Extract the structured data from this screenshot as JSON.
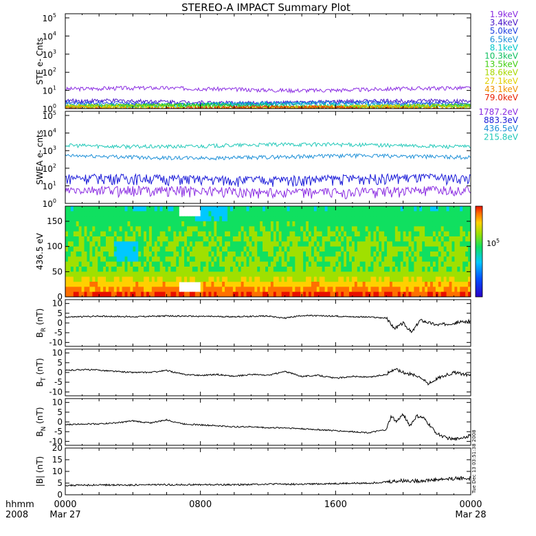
{
  "title": "STEREO-A IMPACT Summary Plot",
  "footer": {
    "corner_top": "hhmm",
    "corner_bottom": "2008",
    "ticks": [
      {
        "time": "0000",
        "date": "Mar 27"
      },
      {
        "time": "0800",
        "date": ""
      },
      {
        "time": "1600",
        "date": ""
      },
      {
        "time": "0000",
        "date": "Mar 28"
      }
    ]
  },
  "side_stamp": "Tue Dec 13 03:51:38 2008",
  "chart_data": [
    {
      "id": "ste",
      "type": "line",
      "ylabel": "STE e- Cnts",
      "yscale": "log",
      "ylim": [
        1,
        100000
      ],
      "ytick_base": "10",
      "ytick_exps": [
        "0",
        "1",
        "2",
        "3",
        "4",
        "5"
      ],
      "xlim_hours": [
        0,
        24
      ],
      "series": [
        {
          "name": "1.9keV",
          "color": "#8a2be2",
          "level": 12
        },
        {
          "name": "3.4keV",
          "color": "#4b17c8",
          "level": 2.4
        },
        {
          "name": "5.0keV",
          "color": "#1f3fe0",
          "level": 2.0
        },
        {
          "name": "6.5keV",
          "color": "#1e90d8",
          "level": 1.8
        },
        {
          "name": "8.1keV",
          "color": "#00c8c8",
          "level": 1.6
        },
        {
          "name": "10.3keV",
          "color": "#10c060",
          "level": 1.45
        },
        {
          "name": "13.5keV",
          "color": "#40d010",
          "level": 1.35
        },
        {
          "name": "18.6keV",
          "color": "#a8d800",
          "level": 1.25
        },
        {
          "name": "27.1keV",
          "color": "#e0d000",
          "level": 1.15
        },
        {
          "name": "43.1keV",
          "color": "#f09000",
          "level": 1.08
        },
        {
          "name": "79.0keV",
          "color": "#e82000",
          "level": 1.03
        }
      ]
    },
    {
      "id": "swea",
      "type": "line",
      "ylabel": "SWEA e- cnts",
      "yscale": "log",
      "ylim": [
        1,
        100000
      ],
      "ytick_base": "10",
      "ytick_exps": [
        "0",
        "1",
        "2",
        "3",
        "4",
        "5"
      ],
      "xlim_hours": [
        0,
        24
      ],
      "series": [
        {
          "name": "1787.2eV",
          "color": "#8a2be2",
          "level": 4
        },
        {
          "name": "883.3eV",
          "color": "#1a1ad8",
          "level": 20
        },
        {
          "name": "436.5eV",
          "color": "#1e90d8",
          "level": 450
        },
        {
          "name": "215.8eV",
          "color": "#20c8b8",
          "level": 2000
        }
      ]
    },
    {
      "id": "pad",
      "type": "heatmap",
      "ylabel": "436.5 eV",
      "ylim": [
        0,
        180
      ],
      "yticks": [
        "0",
        "50",
        "100",
        "150"
      ],
      "xlim_hours": [
        0,
        24
      ],
      "colorbar_label": "10",
      "colorbar_exp": "5"
    },
    {
      "id": "br",
      "type": "line",
      "ylabel": "B",
      "ylabel_sub": "R",
      "ylabel_unit": "(nT)",
      "ylim": [
        -12,
        12
      ],
      "yticks": [
        "10",
        "5",
        "0",
        "-5",
        "-10"
      ],
      "xlim_hours": [
        0,
        24
      ],
      "series": [
        {
          "color": "#000000",
          "x": [
            0,
            2,
            4,
            6,
            8,
            10,
            12,
            13,
            14,
            16,
            18,
            19,
            19.5,
            20,
            20.5,
            21,
            22,
            23,
            24
          ],
          "y": [
            3,
            3.5,
            3.2,
            3.6,
            3.4,
            3.2,
            3.6,
            2.5,
            3.8,
            3.5,
            3,
            2.5,
            -3,
            0,
            -5,
            1.5,
            -1,
            0,
            1
          ]
        }
      ]
    },
    {
      "id": "bt",
      "type": "line",
      "ylabel": "B",
      "ylabel_sub": "T",
      "ylabel_unit": "(nT)",
      "ylim": [
        -12,
        12
      ],
      "yticks": [
        "10",
        "5",
        "0",
        "-5",
        "-10"
      ],
      "xlim_hours": [
        0,
        24
      ],
      "series": [
        {
          "color": "#000000",
          "x": [
            0,
            1,
            2,
            3,
            4,
            5,
            6,
            7,
            8,
            9,
            10,
            11,
            12,
            13,
            14,
            15,
            16,
            17,
            18,
            19,
            19.5,
            20,
            20.5,
            21,
            21.5,
            22,
            23,
            24
          ],
          "y": [
            1,
            1.5,
            1.2,
            0.5,
            0,
            0,
            1,
            -1,
            -1.5,
            -1,
            -2,
            -1,
            -1.5,
            0.5,
            -2,
            -1.5,
            -3,
            -2,
            -2.5,
            -1,
            2,
            0,
            -1,
            -2,
            -6,
            -3,
            0,
            -1.5
          ]
        }
      ]
    },
    {
      "id": "bn",
      "type": "line",
      "ylabel": "B",
      "ylabel_sub": "N",
      "ylabel_unit": "(nT)",
      "ylim": [
        -12,
        12
      ],
      "yticks": [
        "10",
        "5",
        "0",
        "-5",
        "-10"
      ],
      "xlim_hours": [
        0,
        24
      ],
      "series": [
        {
          "color": "#000000",
          "x": [
            0,
            1,
            2,
            3,
            4,
            5,
            6,
            7,
            8,
            9,
            10,
            11,
            12,
            13,
            14,
            15,
            16,
            17,
            18,
            19,
            19.3,
            19.6,
            20,
            20.4,
            20.8,
            21.2,
            21.6,
            22,
            22.5,
            23,
            24
          ],
          "y": [
            -1.5,
            -1,
            -1,
            -0.5,
            0.5,
            -0.5,
            1,
            -1,
            -1.5,
            -2,
            -2.5,
            -2.5,
            -3,
            -3,
            -3.5,
            -4,
            -4.5,
            -5,
            -5.5,
            -4,
            3,
            0,
            4,
            -2,
            3,
            2,
            -2,
            -6,
            -8,
            -9,
            -7
          ]
        }
      ]
    },
    {
      "id": "bmag",
      "type": "line",
      "ylabel": "|B| (nT)",
      "ylim": [
        0,
        20
      ],
      "yticks": [
        "20",
        "15",
        "10",
        "5",
        "0"
      ],
      "xlim_hours": [
        0,
        24
      ],
      "series": [
        {
          "color": "#000000",
          "x": [
            0,
            2,
            4,
            6,
            8,
            10,
            12,
            14,
            16,
            18,
            19,
            20,
            21,
            22,
            23,
            24
          ],
          "y": [
            4,
            4.2,
            4.2,
            4.3,
            4.3,
            4.3,
            4.6,
            4.5,
            4.8,
            5,
            5.5,
            6,
            6,
            6.5,
            7,
            7
          ]
        }
      ]
    }
  ]
}
